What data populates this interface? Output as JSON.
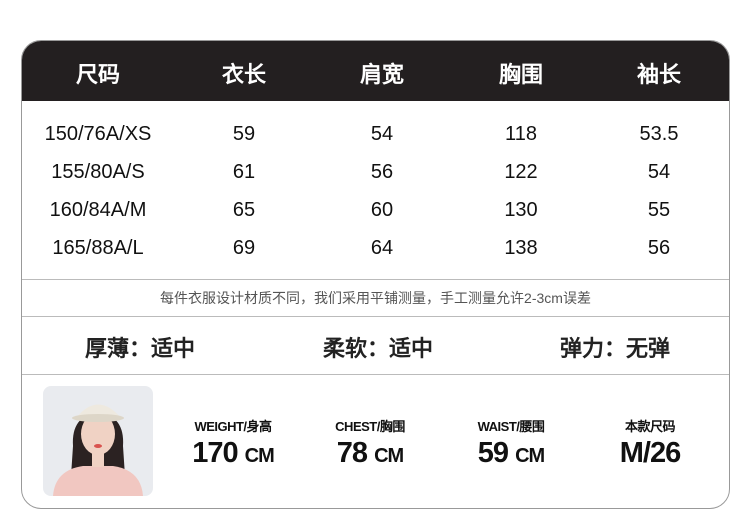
{
  "table": {
    "headers": [
      "尺码",
      "衣长",
      "肩宽",
      "胸围",
      "袖长"
    ],
    "rows": [
      [
        "150/76A/XS",
        "59",
        "54",
        "118",
        "53.5"
      ],
      [
        "155/80A/S",
        "61",
        "56",
        "122",
        "54"
      ],
      [
        "160/84A/M",
        "65",
        "60",
        "130",
        "55"
      ],
      [
        "165/88A/L",
        "69",
        "64",
        "138",
        "56"
      ]
    ]
  },
  "note": "每件衣服设计材质不同，我们采用平铺测量，手工测量允许2-3cm误差",
  "attributes": [
    "厚薄：适中",
    "柔软：适中",
    "弹力：无弹"
  ],
  "model": {
    "stats": [
      {
        "label": "WEIGHT/身高",
        "value": "170",
        "unit": "CM"
      },
      {
        "label": "CHEST/胸围",
        "value": "78",
        "unit": "CM"
      },
      {
        "label": "WAIST/腰围",
        "value": "59",
        "unit": "CM"
      },
      {
        "label": "本款尺码",
        "value": "M/26",
        "unit": ""
      }
    ]
  },
  "colors": {
    "header_bg": "#231f20",
    "header_text": "#ffffff",
    "border": "#999999"
  }
}
